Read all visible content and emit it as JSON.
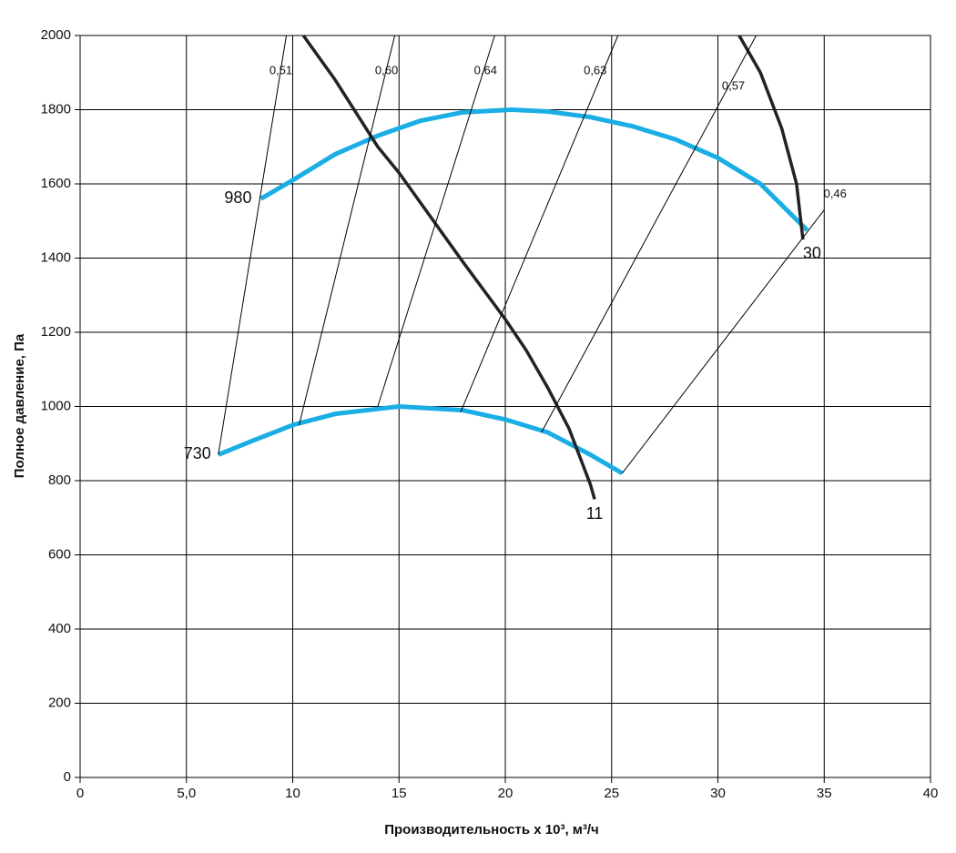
{
  "chart_data": {
    "type": "line",
    "xlabel": "Производительность х 10³, м³/ч",
    "ylabel": "Полное давление, Па",
    "xlim": [
      0,
      40
    ],
    "ylim": [
      0,
      2000
    ],
    "xticks": [
      0,
      {
        "value": 5,
        "label": "5,0"
      },
      10,
      15,
      20,
      25,
      30,
      35,
      40
    ],
    "yticks": [
      0,
      200,
      400,
      600,
      800,
      1000,
      1200,
      1400,
      1600,
      1800,
      2000
    ],
    "grid": true,
    "series": [
      {
        "name": "980",
        "color": "#1aaee5",
        "x": [
          8.5,
          10,
          12,
          14,
          16,
          18,
          20.3,
          22,
          24,
          26,
          28,
          30,
          32,
          34.2
        ],
        "values": [
          1560,
          1610,
          1680,
          1730,
          1770,
          1793,
          1800,
          1795,
          1780,
          1755,
          1720,
          1670,
          1600,
          1475
        ]
      },
      {
        "name": "730",
        "color": "#1aaee5",
        "x": [
          6.5,
          8,
          10,
          12,
          15,
          18,
          20,
          22,
          24,
          25.5
        ],
        "values": [
          870,
          905,
          950,
          980,
          1000,
          990,
          965,
          930,
          870,
          820
        ]
      },
      {
        "name": "11",
        "color": "#222222",
        "x": [
          10.5,
          12,
          14,
          15,
          16,
          18,
          20,
          21,
          22,
          23,
          24,
          24.2
        ],
        "values": [
          2000,
          1880,
          1700,
          1630,
          1550,
          1390,
          1235,
          1150,
          1050,
          940,
          790,
          750
        ]
      },
      {
        "name": "30",
        "color": "#222222",
        "x": [
          31,
          32,
          33,
          33.7,
          34
        ],
        "values": [
          2000,
          1900,
          1750,
          1600,
          1450
        ]
      },
      {
        "name": "0,51",
        "color": "#000000",
        "x": [
          6.5,
          9.7
        ],
        "values": [
          870,
          2000
        ]
      },
      {
        "name": "0,60",
        "color": "#000000",
        "x": [
          10.3,
          14.8
        ],
        "values": [
          950,
          2000
        ]
      },
      {
        "name": "0,64",
        "color": "#000000",
        "x": [
          14,
          19.5
        ],
        "values": [
          1000,
          2000
        ]
      },
      {
        "name": "0,63",
        "color": "#000000",
        "x": [
          17.9,
          25.3
        ],
        "values": [
          985,
          2000
        ]
      },
      {
        "name": "0,57",
        "color": "#000000",
        "x": [
          21.7,
          31.8
        ],
        "values": [
          930,
          2000
        ]
      },
      {
        "name": "0,46",
        "color": "#000000",
        "x": [
          25.5,
          35
        ],
        "values": [
          820,
          1530
        ]
      }
    ]
  }
}
